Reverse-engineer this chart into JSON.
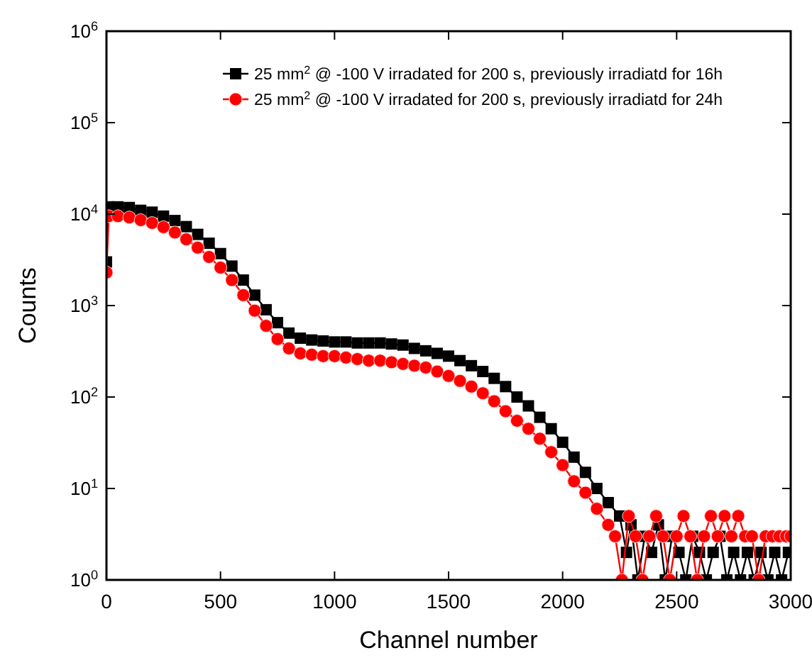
{
  "chart_data": {
    "type": "line",
    "xlabel": "Channel number",
    "ylabel": "Counts",
    "log": "y",
    "xlim": [
      0,
      3000
    ],
    "ylim": [
      1,
      1000000
    ],
    "xticks": [
      0,
      500,
      1000,
      1500,
      2000,
      2500,
      3000
    ],
    "yticks": [
      {
        "value": 1,
        "label": "10$^{0}$"
      },
      {
        "value": 10,
        "label": "10$^{1}$"
      },
      {
        "value": 100,
        "label": "10$^{2}$"
      },
      {
        "value": 1000,
        "label": "10$^{3}$"
      },
      {
        "value": 10000,
        "label": "10$^{4}$"
      },
      {
        "value": 100000,
        "label": "10$^{5}$"
      },
      {
        "value": 1000000,
        "label": "10$^{6}$"
      }
    ],
    "grid": false,
    "legend": "top right",
    "line_style": "solid",
    "series": [
      {
        "name": "25 mm$^{2}$ @ -100 V irradated for 200 s, previously irradiatd for 16h",
        "color": "#000000",
        "marker": "square",
        "x": [
          0,
          10,
          50,
          100,
          150,
          200,
          250,
          300,
          350,
          400,
          450,
          500,
          550,
          600,
          650,
          700,
          750,
          800,
          850,
          900,
          950,
          1000,
          1050,
          1100,
          1150,
          1200,
          1250,
          1300,
          1350,
          1400,
          1450,
          1500,
          1550,
          1600,
          1650,
          1700,
          1750,
          1800,
          1850,
          1900,
          1950,
          2000,
          2050,
          2100,
          2150,
          2200,
          2250,
          2280,
          2300,
          2330,
          2360,
          2390,
          2420,
          2450,
          2480,
          2510,
          2540,
          2570,
          2600,
          2630,
          2660,
          2690,
          2720,
          2750,
          2780,
          2810,
          2840,
          2870,
          2900,
          2930,
          2960,
          2990
        ],
        "values": [
          3000,
          12000,
          12000,
          11800,
          11000,
          10500,
          9500,
          8500,
          7300,
          6000,
          4800,
          3700,
          2700,
          1900,
          1300,
          900,
          650,
          500,
          440,
          420,
          410,
          400,
          400,
          390,
          390,
          390,
          380,
          370,
          340,
          320,
          300,
          280,
          250,
          220,
          190,
          160,
          130,
          100,
          80,
          60,
          45,
          32,
          22,
          15,
          10,
          7,
          5,
          2,
          4,
          1,
          3,
          2,
          4,
          1,
          3,
          2,
          1,
          3,
          2,
          1,
          2,
          3,
          1,
          2,
          1,
          2,
          1,
          2,
          1,
          2,
          1,
          2
        ]
      },
      {
        "name": "25 mm$^{2}$ @ -100 V irradated for 200 s, previously irradiatd for 24h",
        "color": "#ff0000",
        "marker": "circle",
        "x": [
          0,
          10,
          50,
          100,
          150,
          200,
          250,
          300,
          350,
          400,
          450,
          500,
          550,
          600,
          650,
          700,
          750,
          800,
          850,
          900,
          950,
          1000,
          1050,
          1100,
          1150,
          1200,
          1250,
          1300,
          1350,
          1400,
          1450,
          1500,
          1550,
          1600,
          1650,
          1700,
          1750,
          1800,
          1850,
          1900,
          1950,
          2000,
          2050,
          2100,
          2150,
          2200,
          2230,
          2260,
          2290,
          2320,
          2350,
          2380,
          2410,
          2440,
          2470,
          2500,
          2530,
          2560,
          2590,
          2620,
          2650,
          2680,
          2710,
          2740,
          2770,
          2800,
          2830,
          2860,
          2890,
          2920,
          2950,
          2980,
          3000
        ],
        "values": [
          2300,
          9500,
          9500,
          9200,
          8600,
          8000,
          7200,
          6300,
          5300,
          4300,
          3400,
          2600,
          1900,
          1300,
          880,
          600,
          430,
          340,
          300,
          290,
          280,
          280,
          270,
          260,
          250,
          250,
          240,
          230,
          220,
          210,
          190,
          170,
          150,
          130,
          110,
          90,
          70,
          55,
          45,
          35,
          25,
          18,
          12,
          9,
          6,
          4,
          3,
          1,
          5,
          3,
          1,
          3,
          5,
          3,
          1,
          3,
          5,
          3,
          1,
          3,
          5,
          3,
          5,
          3,
          5,
          3,
          3,
          1,
          3,
          3,
          3,
          3,
          3
        ]
      }
    ]
  }
}
